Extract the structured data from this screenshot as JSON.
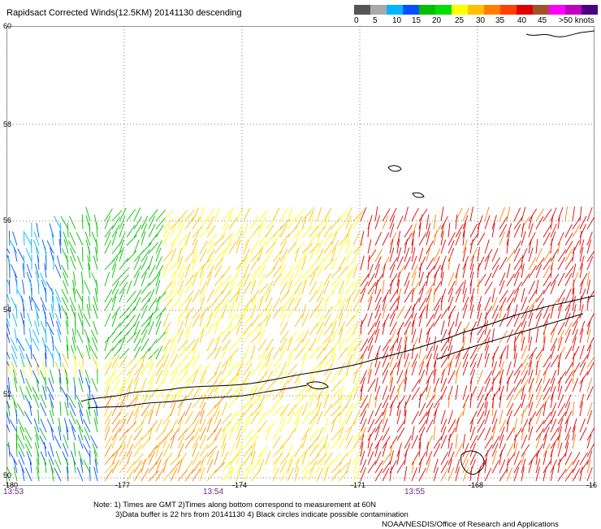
{
  "title": "Rapidsact Corrected Winds(12.5KM) 20141130 descending",
  "legend": {
    "colors": [
      "#555555",
      "#a9a9a9",
      "#00b6ff",
      "#0050ff",
      "#00c000",
      "#00e000",
      "#ffff00",
      "#ffc000",
      "#ff8000",
      "#ff4000",
      "#e00000",
      "#a0522d",
      "#ff00ff",
      "#c000c0",
      "#4b0082"
    ],
    "labels": [
      "0",
      "5",
      "10",
      "15",
      "20",
      "25",
      "30",
      "35",
      "40",
      "45",
      ">50 knots"
    ]
  },
  "latitudes": [
    "60",
    "58",
    "56",
    "54",
    "52",
    "50"
  ],
  "longitudes": [
    "-180",
    "-177",
    "-174",
    "-171",
    "-168",
    "-16"
  ],
  "times": [
    "13:53",
    "13:54",
    "13:55"
  ],
  "notes": {
    "line1": "Note: 1) Times are GMT 2)Times along bottom correspond to measurement at 60N",
    "line2": "3)Data buffer is 22 hrs from 20141130 4) Black circles indicate possible contamination",
    "line3": "NOAA/NESDIS/Office of Research and Applications"
  }
}
